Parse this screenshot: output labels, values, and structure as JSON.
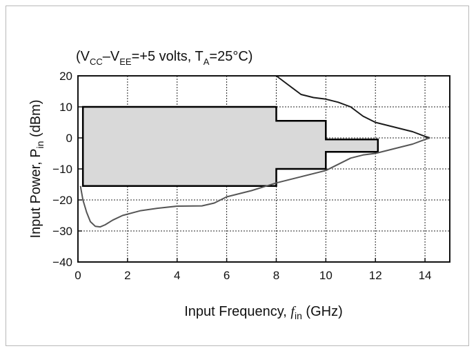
{
  "chart_data": {
    "type": "line",
    "subtitle_parts": {
      "open": "(V",
      "vcc_sub": "CC",
      "dash": "–V",
      "vee_sub": "EE",
      "mid": "=+5 volts, T",
      "ta_sub": "A",
      "end": "=25°C)"
    },
    "xlabel_parts": {
      "text": "Input Frequency, ",
      "f": "f",
      "sub": "in",
      "unit": " (GHz)"
    },
    "ylabel_parts": {
      "text": "Input Power, P",
      "sub": "in",
      "unit": " (dBm)"
    },
    "xlim": [
      0,
      15
    ],
    "ylim": [
      -40,
      20
    ],
    "xticks": [
      0,
      2,
      4,
      6,
      8,
      10,
      12,
      14
    ],
    "yticks": [
      20,
      10,
      0,
      -10,
      -20,
      -30,
      -40
    ],
    "xtick_labels": [
      "0",
      "2",
      "4",
      "6",
      "8",
      "10",
      "12",
      "14"
    ],
    "ytick_labels": [
      "20",
      "10",
      "0",
      "−10",
      "−20",
      "−30",
      "−40"
    ],
    "grid": true,
    "series": [
      {
        "role": "upper-limit-curve",
        "color": "#1a1a1a",
        "x": [
          8.0,
          8.5,
          9.0,
          9.5,
          10.0,
          10.5,
          11.0,
          11.5,
          12.0,
          12.5,
          13.0,
          13.5,
          14.0,
          14.2
        ],
        "y": [
          20.0,
          17.0,
          14.0,
          13.0,
          12.5,
          11.5,
          10.0,
          7.0,
          5.0,
          4.0,
          3.0,
          2.0,
          0.5,
          0.0
        ]
      },
      {
        "role": "lower-sensitivity-curve",
        "color": "#555555",
        "x": [
          0.1,
          0.2,
          0.35,
          0.5,
          0.7,
          0.9,
          1.1,
          1.4,
          1.8,
          2.5,
          3.2,
          4.0,
          5.0,
          5.5,
          6.0,
          7.0,
          8.0,
          9.0,
          10.0,
          10.5,
          11.0,
          11.5,
          12.0,
          12.5,
          13.0,
          13.5,
          14.0,
          14.2
        ],
        "y": [
          -15.5,
          -20.0,
          -24.0,
          -27.0,
          -28.5,
          -28.7,
          -28.0,
          -26.5,
          -25.0,
          -23.5,
          -22.7,
          -22.0,
          -21.9,
          -21.0,
          -19.0,
          -17.0,
          -14.5,
          -12.5,
          -10.5,
          -8.5,
          -6.5,
          -5.5,
          -5.0,
          -4.0,
          -3.0,
          -2.0,
          -0.5,
          0.0
        ]
      }
    ],
    "operating_region": {
      "fill": "#d9d9d9",
      "stroke": "#000000",
      "outline_x": [
        0.2,
        8.0,
        8.0,
        10.0,
        10.0,
        12.1,
        12.1,
        10.0,
        10.0,
        8.0,
        8.0,
        0.2,
        0.2
      ],
      "outline_y": [
        10.0,
        10.0,
        5.5,
        5.5,
        -0.5,
        -0.5,
        -4.5,
        -4.5,
        -10.0,
        -10.0,
        -15.5,
        -15.5,
        10.0
      ]
    }
  }
}
